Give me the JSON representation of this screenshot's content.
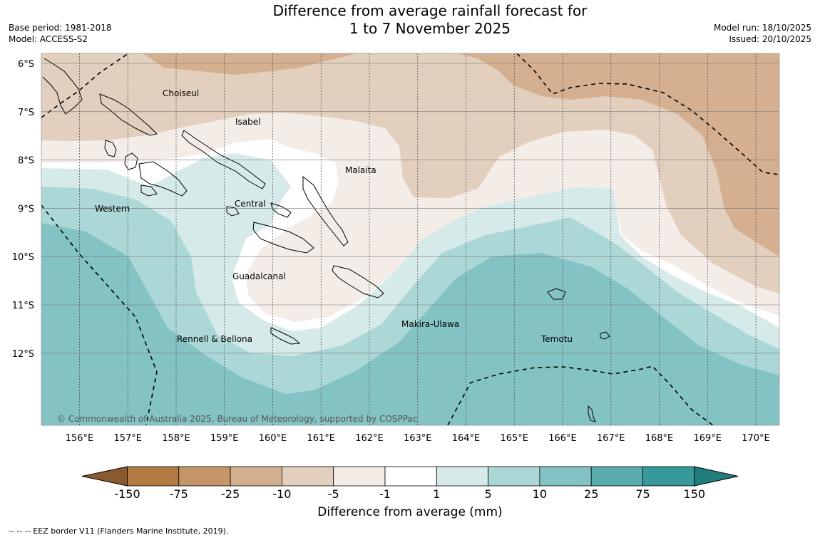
{
  "title_line1": "Difference from average rainfall forecast for",
  "title_line2": "1 to 7 November 2025",
  "base_period": "Base period: 1981-2018",
  "model": "Model: ACCESS-S2",
  "model_run": "Model run: 18/10/2025",
  "issued": "Issued: 20/10/2025",
  "copyright": "© Commonwealth of Australia 2025, Bureau of Meteorology, supported by COSPPac",
  "lat_labels": [
    "6°S",
    "7°S",
    "8°S",
    "9°S",
    "10°S",
    "11°S",
    "12°S"
  ],
  "lon_labels": [
    "156°E",
    "157°E",
    "158°E",
    "159°E",
    "160°E",
    "161°E",
    "162°E",
    "163°E",
    "164°E",
    "165°E",
    "166°E",
    "167°E",
    "168°E",
    "169°E",
    "170°E"
  ],
  "provinces": [
    "Choiseul",
    "Isabel",
    "Malaita",
    "Central",
    "Western",
    "Guadalcanal",
    "Rennell & Bellona",
    "Makira-Ulawa",
    "Temotu"
  ],
  "legend": {
    "bins": [
      "-150",
      "-75",
      "-25",
      "-10",
      "-5",
      "-1",
      "1",
      "5",
      "10",
      "25",
      "75",
      "150"
    ],
    "colors": [
      "#8a5a2e",
      "#b07a42",
      "#c4966a",
      "#d5b090",
      "#e2cfbd",
      "#f4ece7",
      "#ffffff",
      "#d6eaea",
      "#acd7d7",
      "#84c3c3",
      "#5aabab",
      "#38999a",
      "#207d7c"
    ],
    "label": "Difference from average (mm)"
  },
  "footnote": "-- -- -- EEZ border V11 (Flanders Marine Institute, 2019)."
}
